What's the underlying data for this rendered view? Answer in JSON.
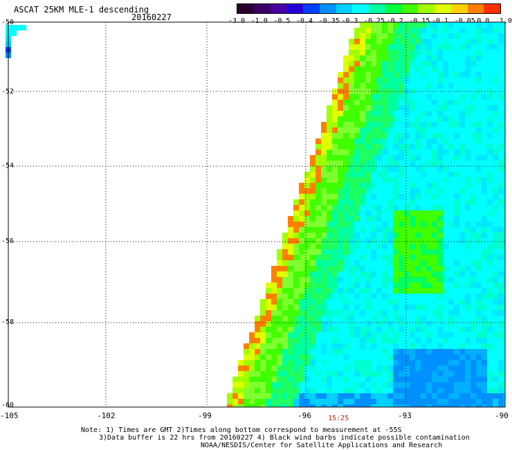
{
  "header": {
    "title": "ASCAT 25KM MLE-1 descending",
    "date": "20160227"
  },
  "colorbar": {
    "colors": [
      "#2a0030",
      "#3a0064",
      "#4a00a0",
      "#2400d8",
      "#0040ff",
      "#0090ff",
      "#00d0ff",
      "#00ffff",
      "#00ffa0",
      "#00ff40",
      "#40ff00",
      "#a0ff00",
      "#e0ff00",
      "#ffd000",
      "#ff8000",
      "#ff3000"
    ],
    "labels": [
      "-3.0",
      "-1.0",
      "-0.5",
      "-0.4",
      "-0.35",
      "-0.3",
      "-0.25",
      "-0.2",
      "-0.15",
      "-0.1",
      "-0.05",
      "0.0",
      "1.0"
    ]
  },
  "axes": {
    "lat_labels": [
      "-50",
      "-52",
      "-54",
      "-56",
      "-58",
      "-60"
    ],
    "lon_labels": [
      "-105",
      "-102",
      "-99",
      "-96",
      "-93",
      "-90"
    ]
  },
  "time_label": "15:25",
  "notes": {
    "line1": "Note: 1) Times are GMT 2)Times along bottom correspond to measurement at -55S",
    "line2": "3)Data buffer is 22 hrs from 20160227 4) Black wind barbs indicate possible contamination",
    "line3": "NOAA/NESDIS/Center for Satellite Applications and Research"
  }
}
